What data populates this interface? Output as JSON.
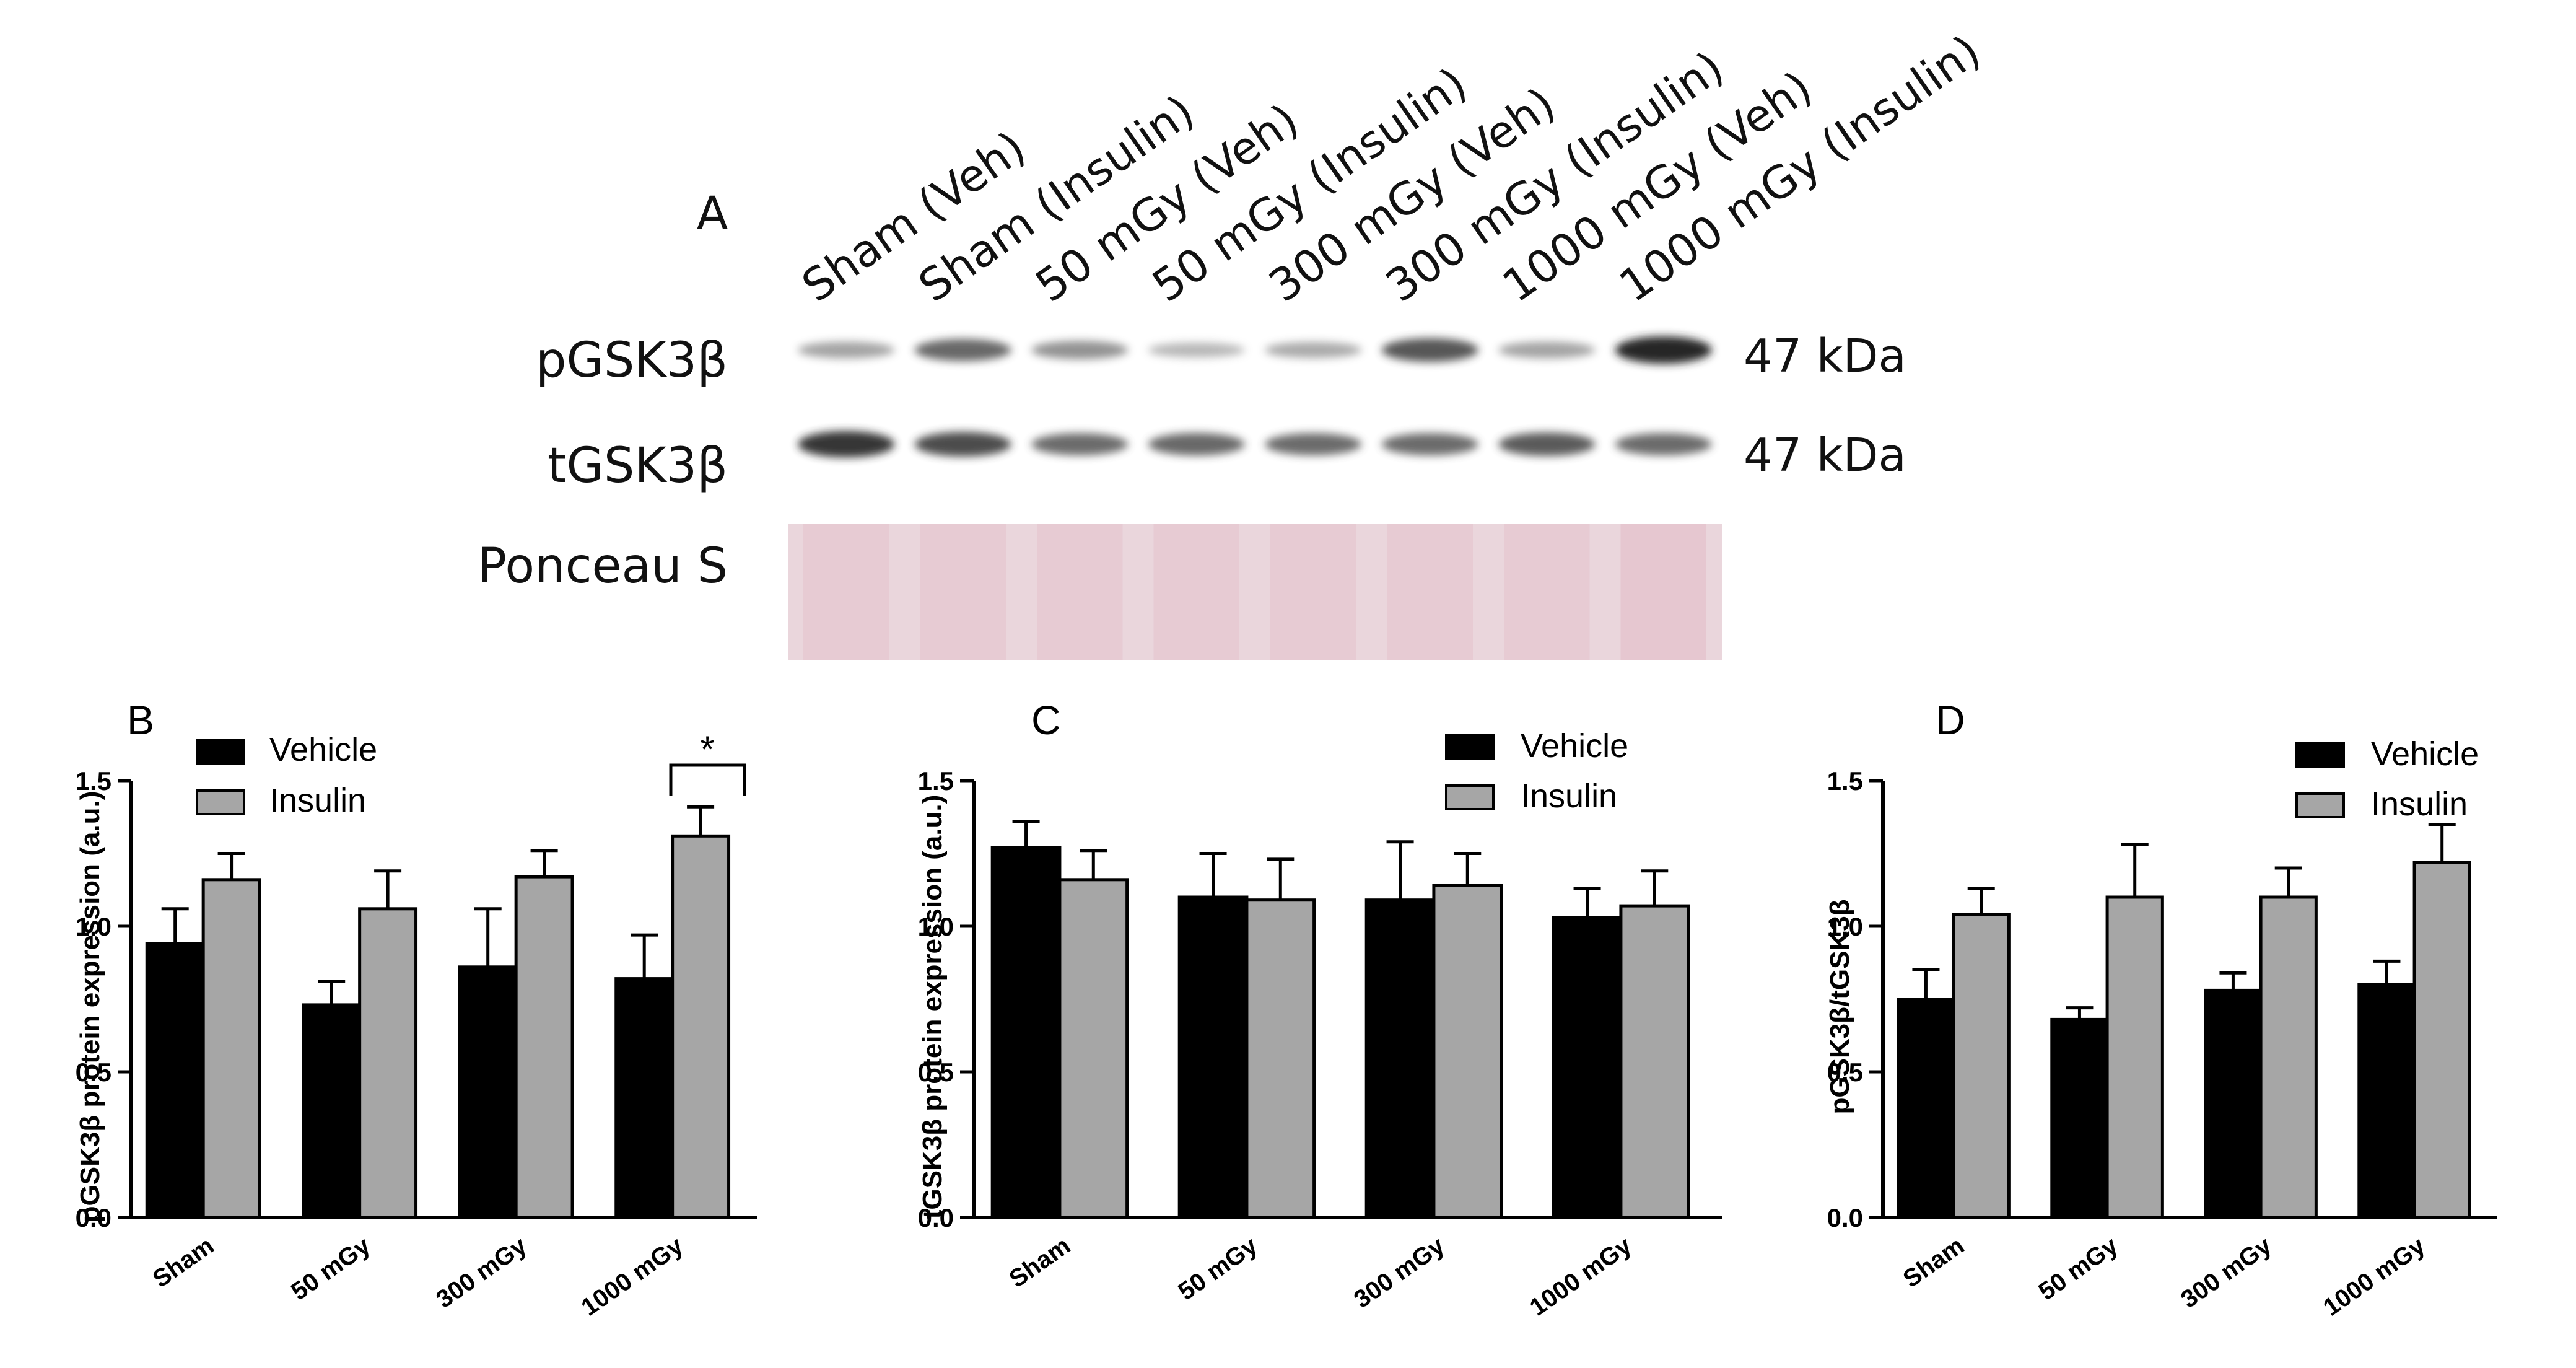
{
  "blot": {
    "panel_label": "A",
    "lanes": [
      "Sham (Veh)",
      "Sham (Insulin)",
      "50 mGy (Veh)",
      "50 mGy (Insulin)",
      "300 mGy (Veh)",
      "300 mGy (Insulin)",
      "1000 mGy (Veh)",
      "1000 mGy (Insulin)"
    ],
    "rows": [
      {
        "label": "pGSK3β",
        "mw": "47 kDa",
        "intensity": [
          0.4,
          0.72,
          0.5,
          0.28,
          0.36,
          0.8,
          0.4,
          1.0
        ]
      },
      {
        "label": "tGSK3β",
        "mw": "47 kDa",
        "intensity": [
          0.95,
          0.85,
          0.7,
          0.72,
          0.7,
          0.7,
          0.78,
          0.7
        ]
      },
      {
        "label": "Ponceau S",
        "mw": "",
        "intensity": []
      }
    ],
    "ponceau_color": "#ead6dc"
  },
  "colors": {
    "vehicle": "#000000",
    "insulin": "#a6a6a6",
    "error": "#000000"
  },
  "chart_data": [
    {
      "type": "bar",
      "panel_label": "B",
      "ylabel": "pGSK3β protein expression (a.u.)",
      "categories": [
        "Sham",
        "50 mGy",
        "300 mGy",
        "1000 mGy"
      ],
      "ylim": [
        0,
        1.5
      ],
      "yticks": [
        0.0,
        0.5,
        1.0,
        1.5
      ],
      "ytick_labels": [
        "0.0",
        "0.5",
        "1.0",
        "1.5"
      ],
      "legend": [
        "Vehicle",
        "Insulin"
      ],
      "series": [
        {
          "name": "Vehicle",
          "values": [
            0.94,
            0.73,
            0.86,
            0.82
          ],
          "errors": [
            0.12,
            0.08,
            0.2,
            0.15
          ]
        },
        {
          "name": "Insulin",
          "values": [
            1.16,
            1.06,
            1.17,
            1.31
          ],
          "errors": [
            0.09,
            0.13,
            0.09,
            0.1
          ]
        }
      ],
      "annotation": {
        "text": "*",
        "category": "1000 mGy"
      }
    },
    {
      "type": "bar",
      "panel_label": "C",
      "ylabel": "tGSK3β protein expression (a.u.)",
      "categories": [
        "Sham",
        "50 mGy",
        "300 mGy",
        "1000 mGy"
      ],
      "ylim": [
        0,
        1.5
      ],
      "yticks": [
        0.0,
        0.5,
        1.0,
        1.5
      ],
      "ytick_labels": [
        "0.0",
        "0.5",
        "1.0",
        "1.5"
      ],
      "legend": [
        "Vehicle",
        "Insulin"
      ],
      "series": [
        {
          "name": "Vehicle",
          "values": [
            1.27,
            1.1,
            1.09,
            1.03
          ],
          "errors": [
            0.09,
            0.15,
            0.2,
            0.1
          ]
        },
        {
          "name": "Insulin",
          "values": [
            1.16,
            1.09,
            1.14,
            1.07
          ],
          "errors": [
            0.1,
            0.14,
            0.11,
            0.12
          ]
        }
      ]
    },
    {
      "type": "bar",
      "panel_label": "D",
      "ylabel": "pGSK3β/tGSK3β",
      "categories": [
        "Sham",
        "50 mGy",
        "300 mGy",
        "1000 mGy"
      ],
      "ylim": [
        0,
        1.5
      ],
      "yticks": [
        0.0,
        0.5,
        1.0,
        1.5
      ],
      "ytick_labels": [
        "0.0",
        "0.5",
        "1.0",
        "1.5"
      ],
      "legend": [
        "Vehicle",
        "Insulin"
      ],
      "series": [
        {
          "name": "Vehicle",
          "values": [
            0.75,
            0.68,
            0.78,
            0.8
          ],
          "errors": [
            0.1,
            0.04,
            0.06,
            0.08
          ]
        },
        {
          "name": "Insulin",
          "values": [
            1.04,
            1.1,
            1.1,
            1.22
          ],
          "errors": [
            0.09,
            0.18,
            0.1,
            0.13
          ]
        }
      ]
    }
  ]
}
